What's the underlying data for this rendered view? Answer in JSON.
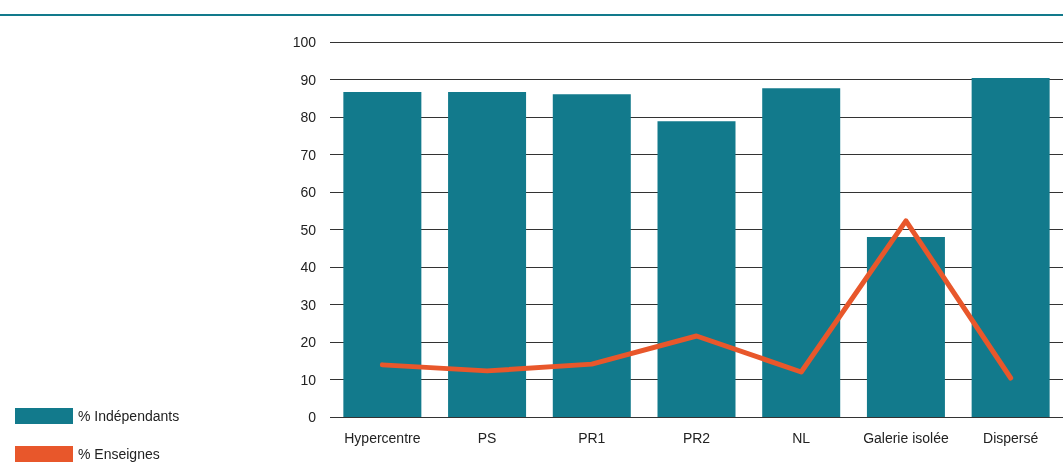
{
  "chart_data": {
    "type": "bar",
    "categories": [
      "Hypercentre",
      "PS",
      "PR1",
      "PR2",
      "NL",
      "Galerie isolée",
      "Dispersé"
    ],
    "series": [
      {
        "name": "% Indépendants",
        "color": "#127a8c",
        "values": [
          86.7,
          86.7,
          86.1,
          78.9,
          87.7,
          48,
          90.4
        ]
      },
      {
        "name": "% Enseignes",
        "type": "line",
        "color": "#e8572b",
        "values": [
          13.9,
          12.3,
          14.1,
          21.6,
          12,
          52.3,
          10.4
        ]
      }
    ],
    "ylim": [
      0,
      100
    ],
    "yticks": [
      0,
      10,
      20,
      30,
      40,
      50,
      60,
      70,
      80,
      90,
      100
    ],
    "grid": "y",
    "legend": "bottom left",
    "marker": "none"
  }
}
